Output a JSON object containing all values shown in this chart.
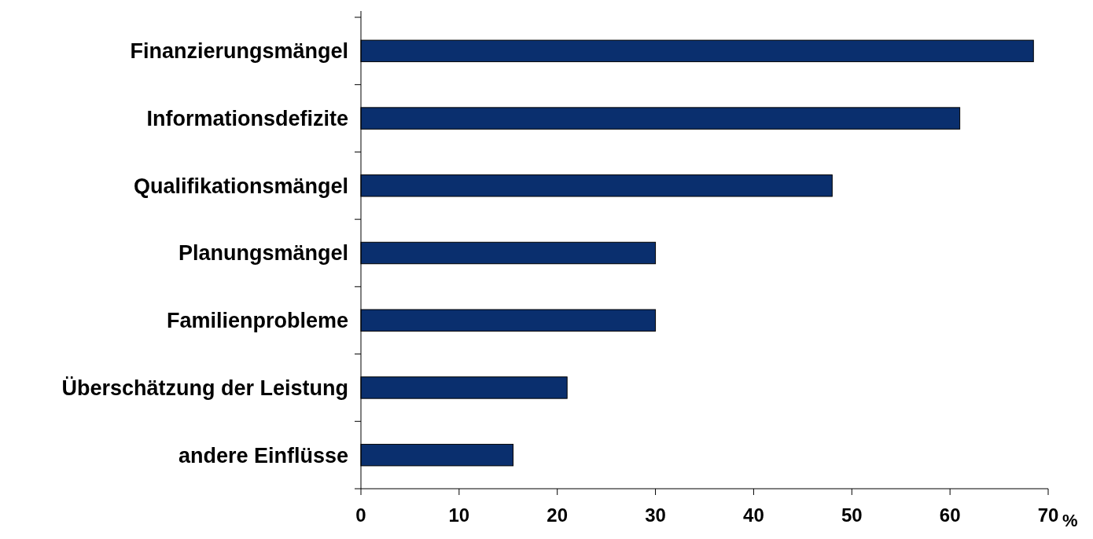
{
  "chart_data": {
    "type": "bar",
    "orientation": "horizontal",
    "categories": [
      "Finanzierungsmängel",
      "Informationsdefizite",
      "Qualifikationsmängel",
      "Planungsmängel",
      "Familienprobleme",
      "Überschätzung der Leistung",
      "andere Einflüsse"
    ],
    "values": [
      68.5,
      61,
      48,
      30,
      30,
      21,
      15.5
    ],
    "color": "#0a2f6e",
    "xlim": [
      0,
      70
    ],
    "xticks": [
      0,
      10,
      20,
      30,
      40,
      50,
      60,
      70
    ],
    "xlabel": "%",
    "grid": false
  }
}
